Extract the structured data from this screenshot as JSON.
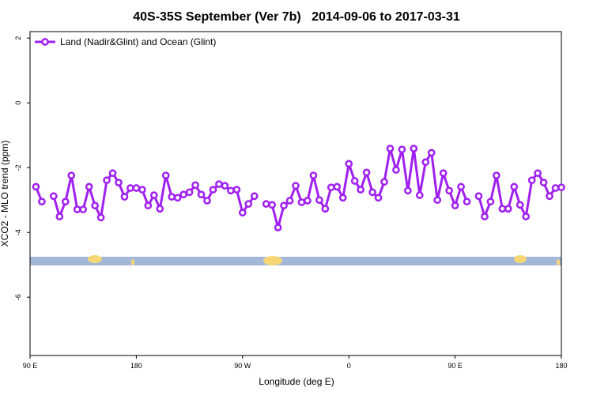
{
  "chart_data": {
    "type": "line",
    "title": "40S-35S September (Ver 7b)   2014-09-06 to 2017-03-31",
    "x_label": "Longitude (deg E)",
    "y_label": "XCO2 - MLO trend (ppm)",
    "xlim": [
      90,
      540
    ],
    "ylim": [
      -7.8,
      2.2
    ],
    "xticks": [
      {
        "value": 90,
        "label": "90 E"
      },
      180,
      {
        "value": 270,
        "label": "90 W"
      },
      {
        "value": 360,
        "label": "0"
      },
      {
        "value": 450,
        "label": "90 E"
      },
      {
        "value": 540,
        "label": "180"
      }
    ],
    "yticks": [
      -6,
      -4,
      -2,
      0,
      2
    ],
    "legend": "upper left",
    "x": [
      95,
      100,
      105,
      110,
      115,
      120,
      125,
      130,
      135,
      140,
      145,
      150,
      155,
      160,
      165,
      170,
      175,
      180,
      185,
      190,
      195,
      200,
      205,
      210,
      215,
      220,
      225,
      230,
      235,
      240,
      245,
      250,
      255,
      260,
      265,
      270,
      275,
      280,
      285,
      290,
      295,
      300,
      305,
      310,
      315,
      320,
      325,
      330,
      335,
      340,
      345,
      350,
      355,
      360,
      365,
      370,
      375,
      380,
      385,
      390,
      395,
      400,
      405,
      410,
      415,
      420,
      425,
      430,
      435,
      440,
      445,
      450,
      455,
      460,
      465,
      470,
      475,
      480,
      485,
      490,
      495,
      500,
      505,
      510,
      515,
      520,
      525,
      530,
      535,
      540
    ],
    "series": [
      {
        "name": "Land (Nadir&Glint) and Ocean (Glint)",
        "color": "#a020f0",
        "values": [
          -2.59,
          -3.05,
          null,
          -2.88,
          -3.51,
          -3.05,
          -2.24,
          -3.29,
          -3.29,
          -2.59,
          -3.17,
          -3.54,
          -2.39,
          -2.17,
          -2.46,
          -2.9,
          -2.63,
          -2.63,
          -2.68,
          -3.17,
          -2.85,
          -3.27,
          -2.24,
          -2.9,
          -2.93,
          -2.83,
          -2.76,
          -2.54,
          -2.83,
          -3.02,
          -2.68,
          -2.51,
          -2.56,
          -2.71,
          -2.68,
          -3.39,
          -3.12,
          -2.88,
          null,
          -3.12,
          -3.15,
          -3.85,
          -3.17,
          -3.02,
          -2.56,
          -3.07,
          -3.02,
          -2.24,
          -3.0,
          -3.27,
          -2.61,
          -2.59,
          -2.93,
          -1.88,
          -2.41,
          -2.68,
          -2.15,
          -2.76,
          -2.93,
          -2.44,
          -1.41,
          -2.07,
          -1.44,
          -2.71,
          -1.41,
          -2.85,
          -1.83,
          -1.54,
          -3.0,
          -2.17,
          -2.71,
          -3.17,
          -2.59,
          -3.05,
          null,
          -2.88,
          -3.51,
          -3.05,
          -2.24,
          -3.27,
          -3.27,
          -2.59,
          -3.15,
          -3.51,
          -2.39,
          -2.17,
          -2.46,
          -2.88,
          -2.63,
          -2.61
        ]
      }
    ]
  }
}
